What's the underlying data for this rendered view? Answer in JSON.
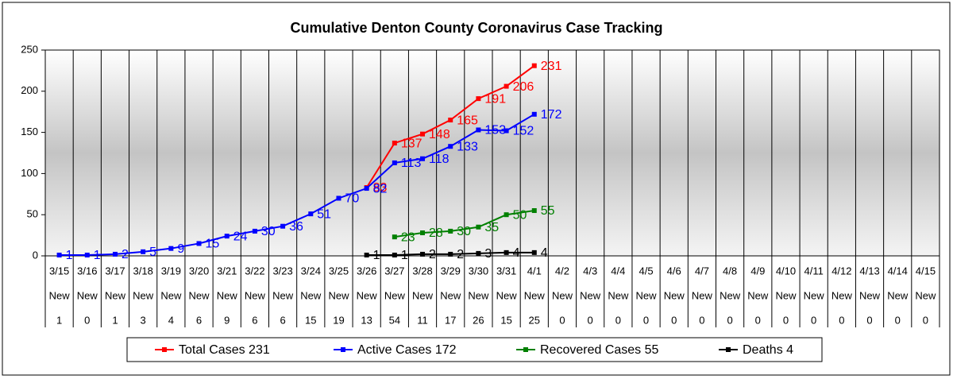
{
  "chart_data": {
    "type": "line",
    "title": "Cumulative Denton County Coronavirus Case Tracking",
    "categories": [
      "3/15",
      "3/16",
      "3/17",
      "3/18",
      "3/19",
      "3/20",
      "3/21",
      "3/22",
      "3/23",
      "3/24",
      "3/25",
      "3/26",
      "3/27",
      "3/28",
      "3/29",
      "3/30",
      "3/31",
      "4/1",
      "4/2",
      "4/3",
      "4/4",
      "4/5",
      "4/6",
      "4/7",
      "4/8",
      "4/9",
      "4/10",
      "4/11",
      "4/12",
      "4/13",
      "4/14",
      "4/15"
    ],
    "row_label": "New",
    "new_cases": [
      1,
      0,
      1,
      3,
      4,
      6,
      9,
      6,
      6,
      15,
      19,
      13,
      54,
      11,
      17,
      26,
      15,
      25,
      0,
      0,
      0,
      0,
      0,
      0,
      0,
      0,
      0,
      0,
      0,
      0,
      0,
      0
    ],
    "series": [
      {
        "name": "Total Cases 231",
        "color": "#ff0000",
        "values": [
          null,
          null,
          null,
          null,
          null,
          null,
          null,
          null,
          null,
          null,
          null,
          83,
          137,
          148,
          165,
          191,
          206,
          231,
          null,
          null,
          null,
          null,
          null,
          null,
          null,
          null,
          null,
          null,
          null,
          null,
          null,
          null
        ]
      },
      {
        "name": "Active Cases 172",
        "color": "#0000ff",
        "values": [
          1,
          1,
          2,
          5,
          9,
          15,
          24,
          30,
          36,
          51,
          70,
          82,
          113,
          118,
          133,
          153,
          152,
          172,
          null,
          null,
          null,
          null,
          null,
          null,
          null,
          null,
          null,
          null,
          null,
          null,
          null,
          null
        ]
      },
      {
        "name": "Recovered Cases 55",
        "color": "#008000",
        "values": [
          null,
          null,
          null,
          null,
          null,
          null,
          null,
          null,
          null,
          null,
          null,
          null,
          23,
          28,
          30,
          35,
          50,
          55,
          null,
          null,
          null,
          null,
          null,
          null,
          null,
          null,
          null,
          null,
          null,
          null,
          null,
          null
        ]
      },
      {
        "name": "Deaths 4",
        "color": "#000000",
        "values": [
          null,
          null,
          null,
          null,
          null,
          null,
          null,
          null,
          null,
          null,
          null,
          1,
          1,
          2,
          2,
          3,
          4,
          4,
          null,
          null,
          null,
          null,
          null,
          null,
          null,
          null,
          null,
          null,
          null,
          null,
          null,
          null
        ]
      }
    ],
    "ylim": [
      0,
      250
    ],
    "yticks": [
      0,
      50,
      100,
      150,
      200,
      250
    ],
    "legend": "bottom"
  }
}
